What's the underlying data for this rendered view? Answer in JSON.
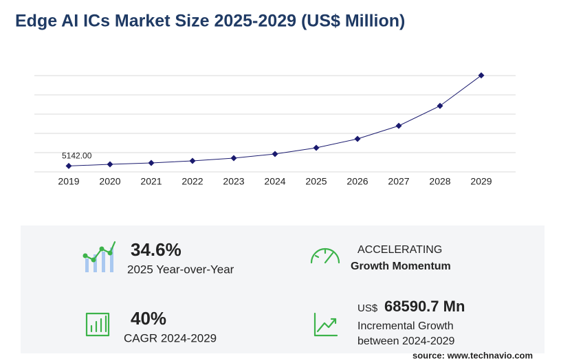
{
  "chart_data": {
    "type": "line",
    "title": "Edge AI ICs Market Size 2025-2029 (US$ Million)",
    "categories": [
      "2019",
      "2020",
      "2021",
      "2022",
      "2023",
      "2024",
      "2025",
      "2026",
      "2027",
      "2028",
      "2029"
    ],
    "values": [
      5142,
      6600,
      7800,
      9600,
      12000,
      15600,
      21000,
      28800,
      40200,
      57600,
      84190.7
    ],
    "value_labels": [
      "5142.00",
      null,
      null,
      null,
      null,
      null,
      null,
      null,
      null,
      null,
      null
    ],
    "color": "#1a1a6e",
    "ylim": [
      0,
      84000
    ],
    "grid": true
  },
  "stats": [
    {
      "value": "34.6%",
      "label": "2025 Year-over-Year"
    },
    {
      "value": "ACCELERATING",
      "label": "Growth Momentum"
    },
    {
      "value": "40%",
      "label": "CAGR 2024-2029"
    },
    {
      "prefix": "US$",
      "value": "68590.7 Mn",
      "label": "Incremental Growth",
      "label2": "between 2024-2029"
    }
  ],
  "source": "source: www.technavio.com"
}
